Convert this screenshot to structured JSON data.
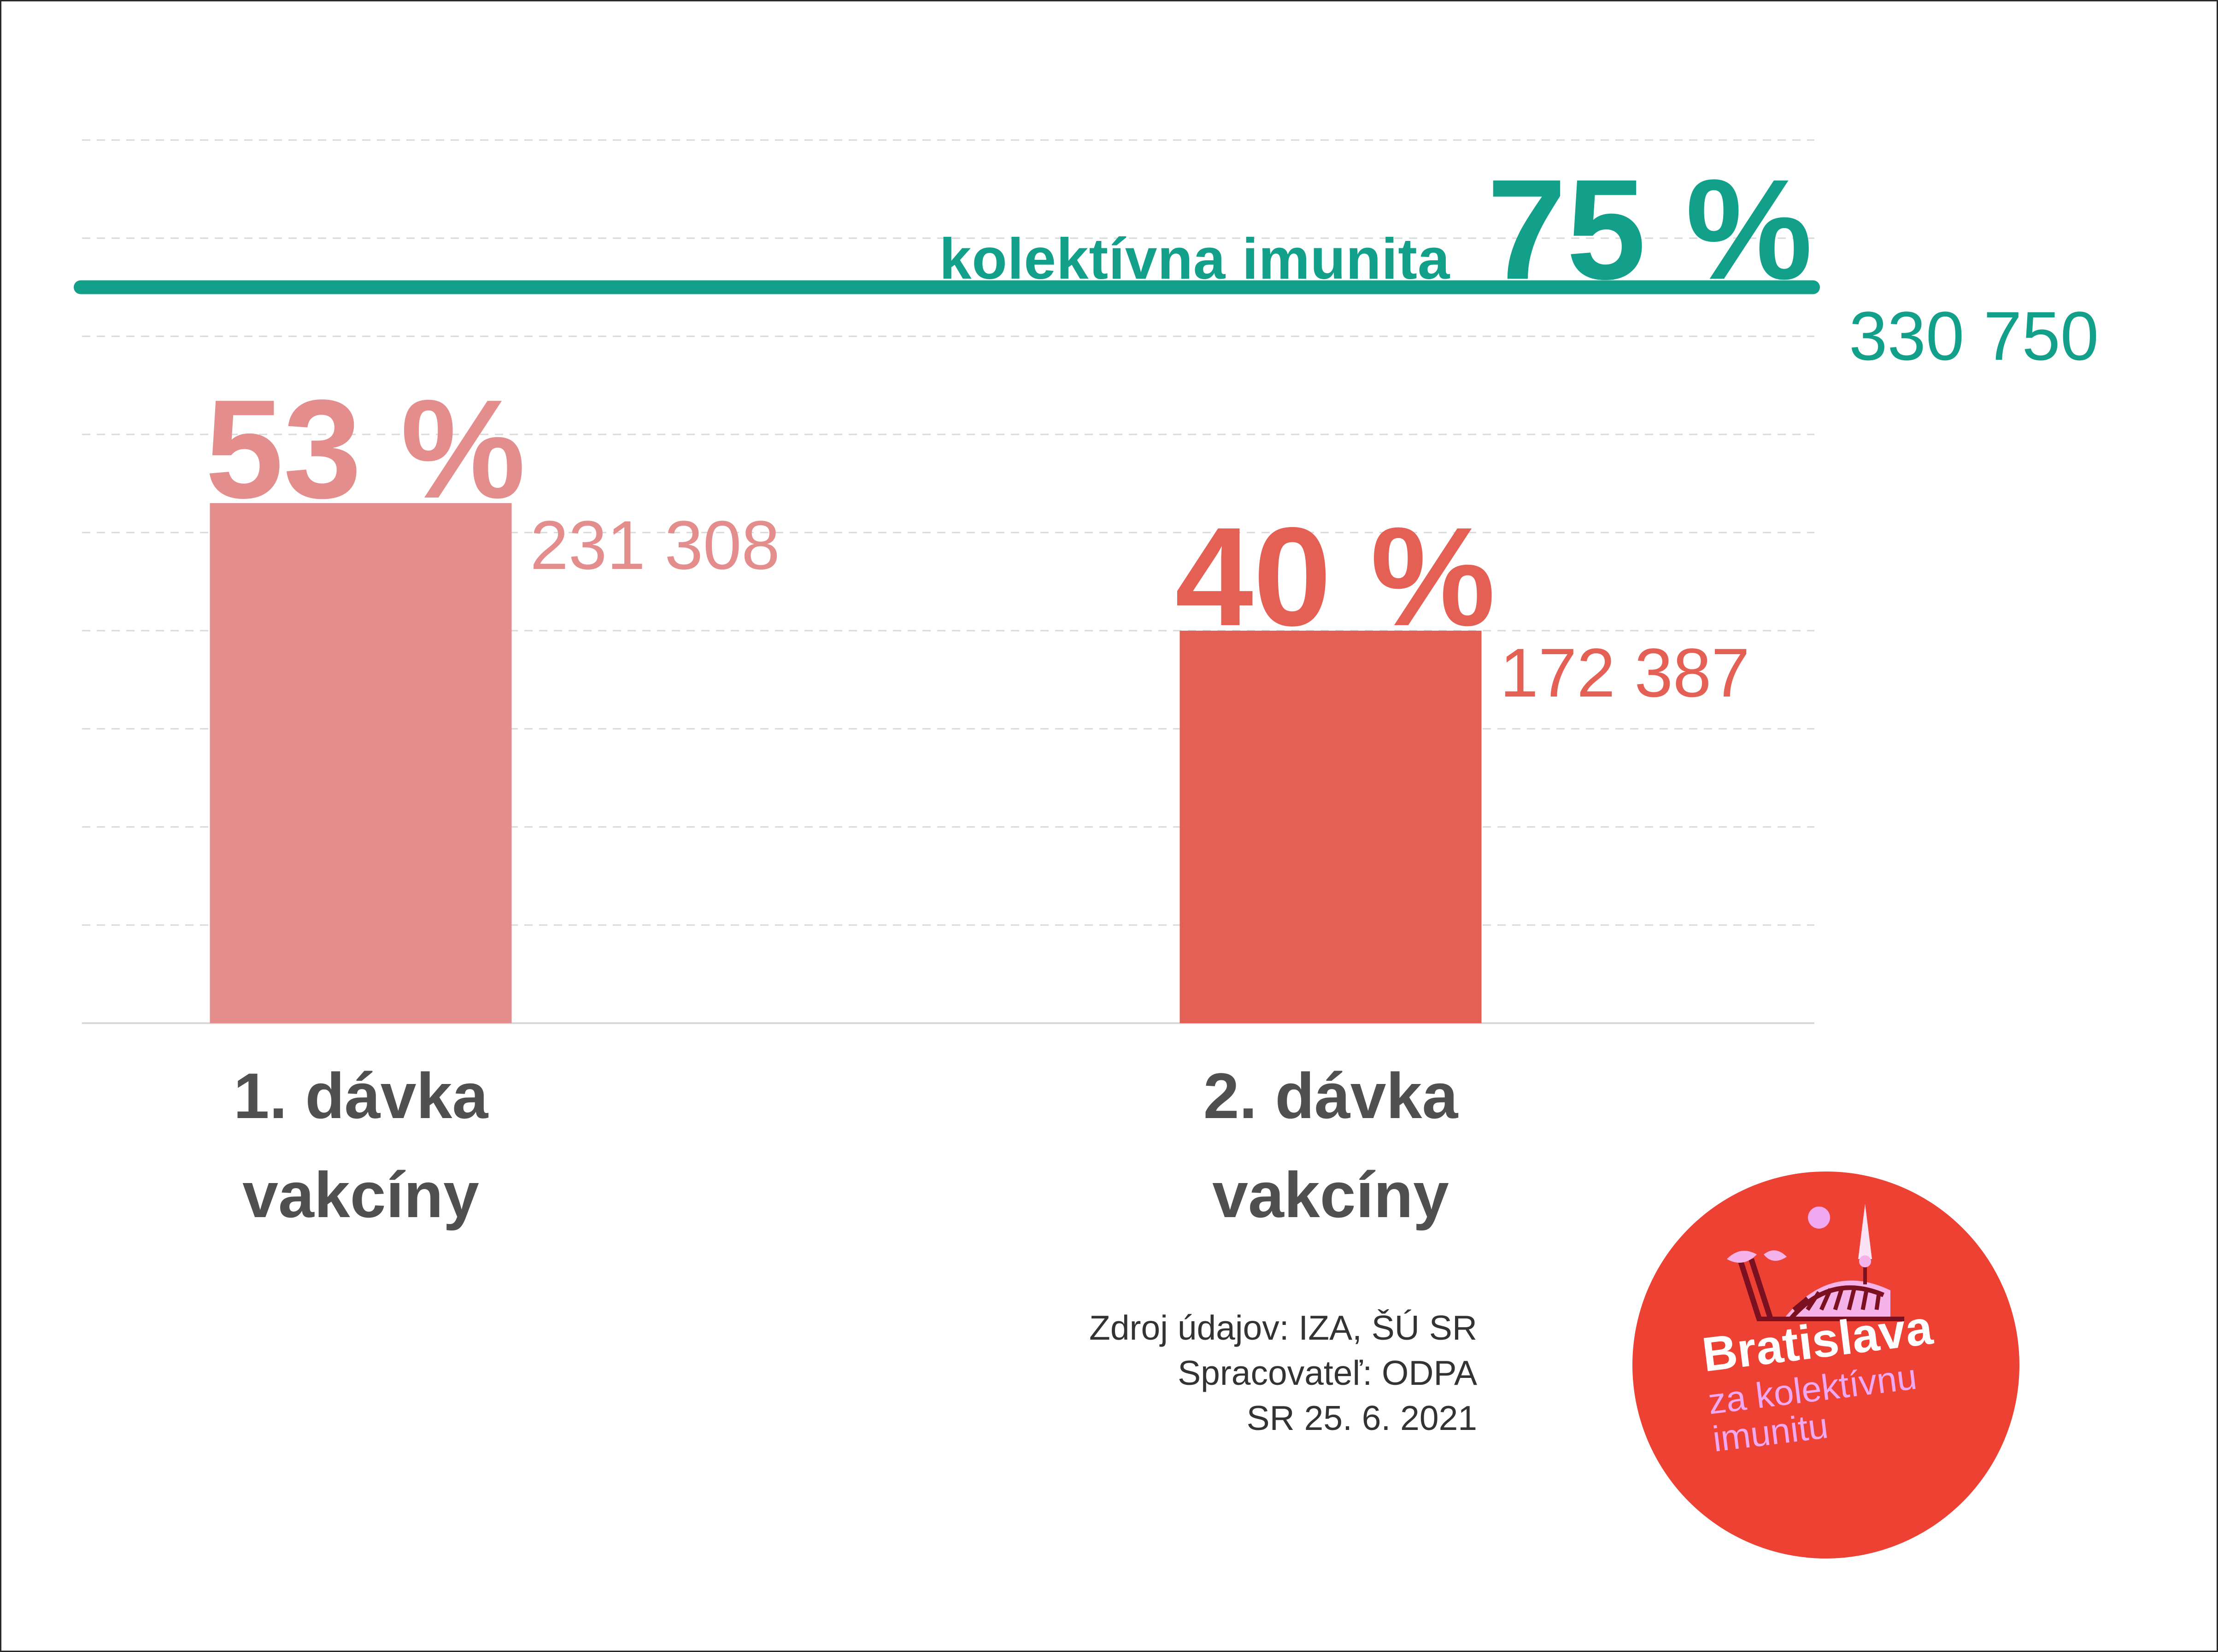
{
  "chart_data": {
    "type": "bar",
    "categories": [
      "1. dávka vakcíny",
      "2. dávka vakcíny"
    ],
    "category_lines": [
      [
        "1. dávka",
        "vakcíny"
      ],
      [
        "2. dávka",
        "vakcíny"
      ]
    ],
    "values": [
      53,
      40
    ],
    "value_labels": [
      "53 %",
      "40 %"
    ],
    "counts": [
      "231 308",
      "172 387"
    ],
    "ylim": [
      0,
      100
    ],
    "grid": true,
    "target": {
      "label": "kolektívna imunita",
      "value": 75,
      "value_label": "75 %",
      "count": "330 750"
    }
  },
  "colors": {
    "dose1": "#e38e8d",
    "dose2": "#e46055",
    "target": "#12a08a",
    "label": "#505050",
    "logo_bg": "#ec4133"
  },
  "source": {
    "line1": "Zdroj údajov:  IZA, ŠÚ SR",
    "line2": "Spracovateľ: ODPA",
    "line3": "SR 25. 6. 2021"
  },
  "logo": {
    "title": "Bratislava",
    "line1": "za kolektívnu",
    "line2": "imunitu"
  }
}
